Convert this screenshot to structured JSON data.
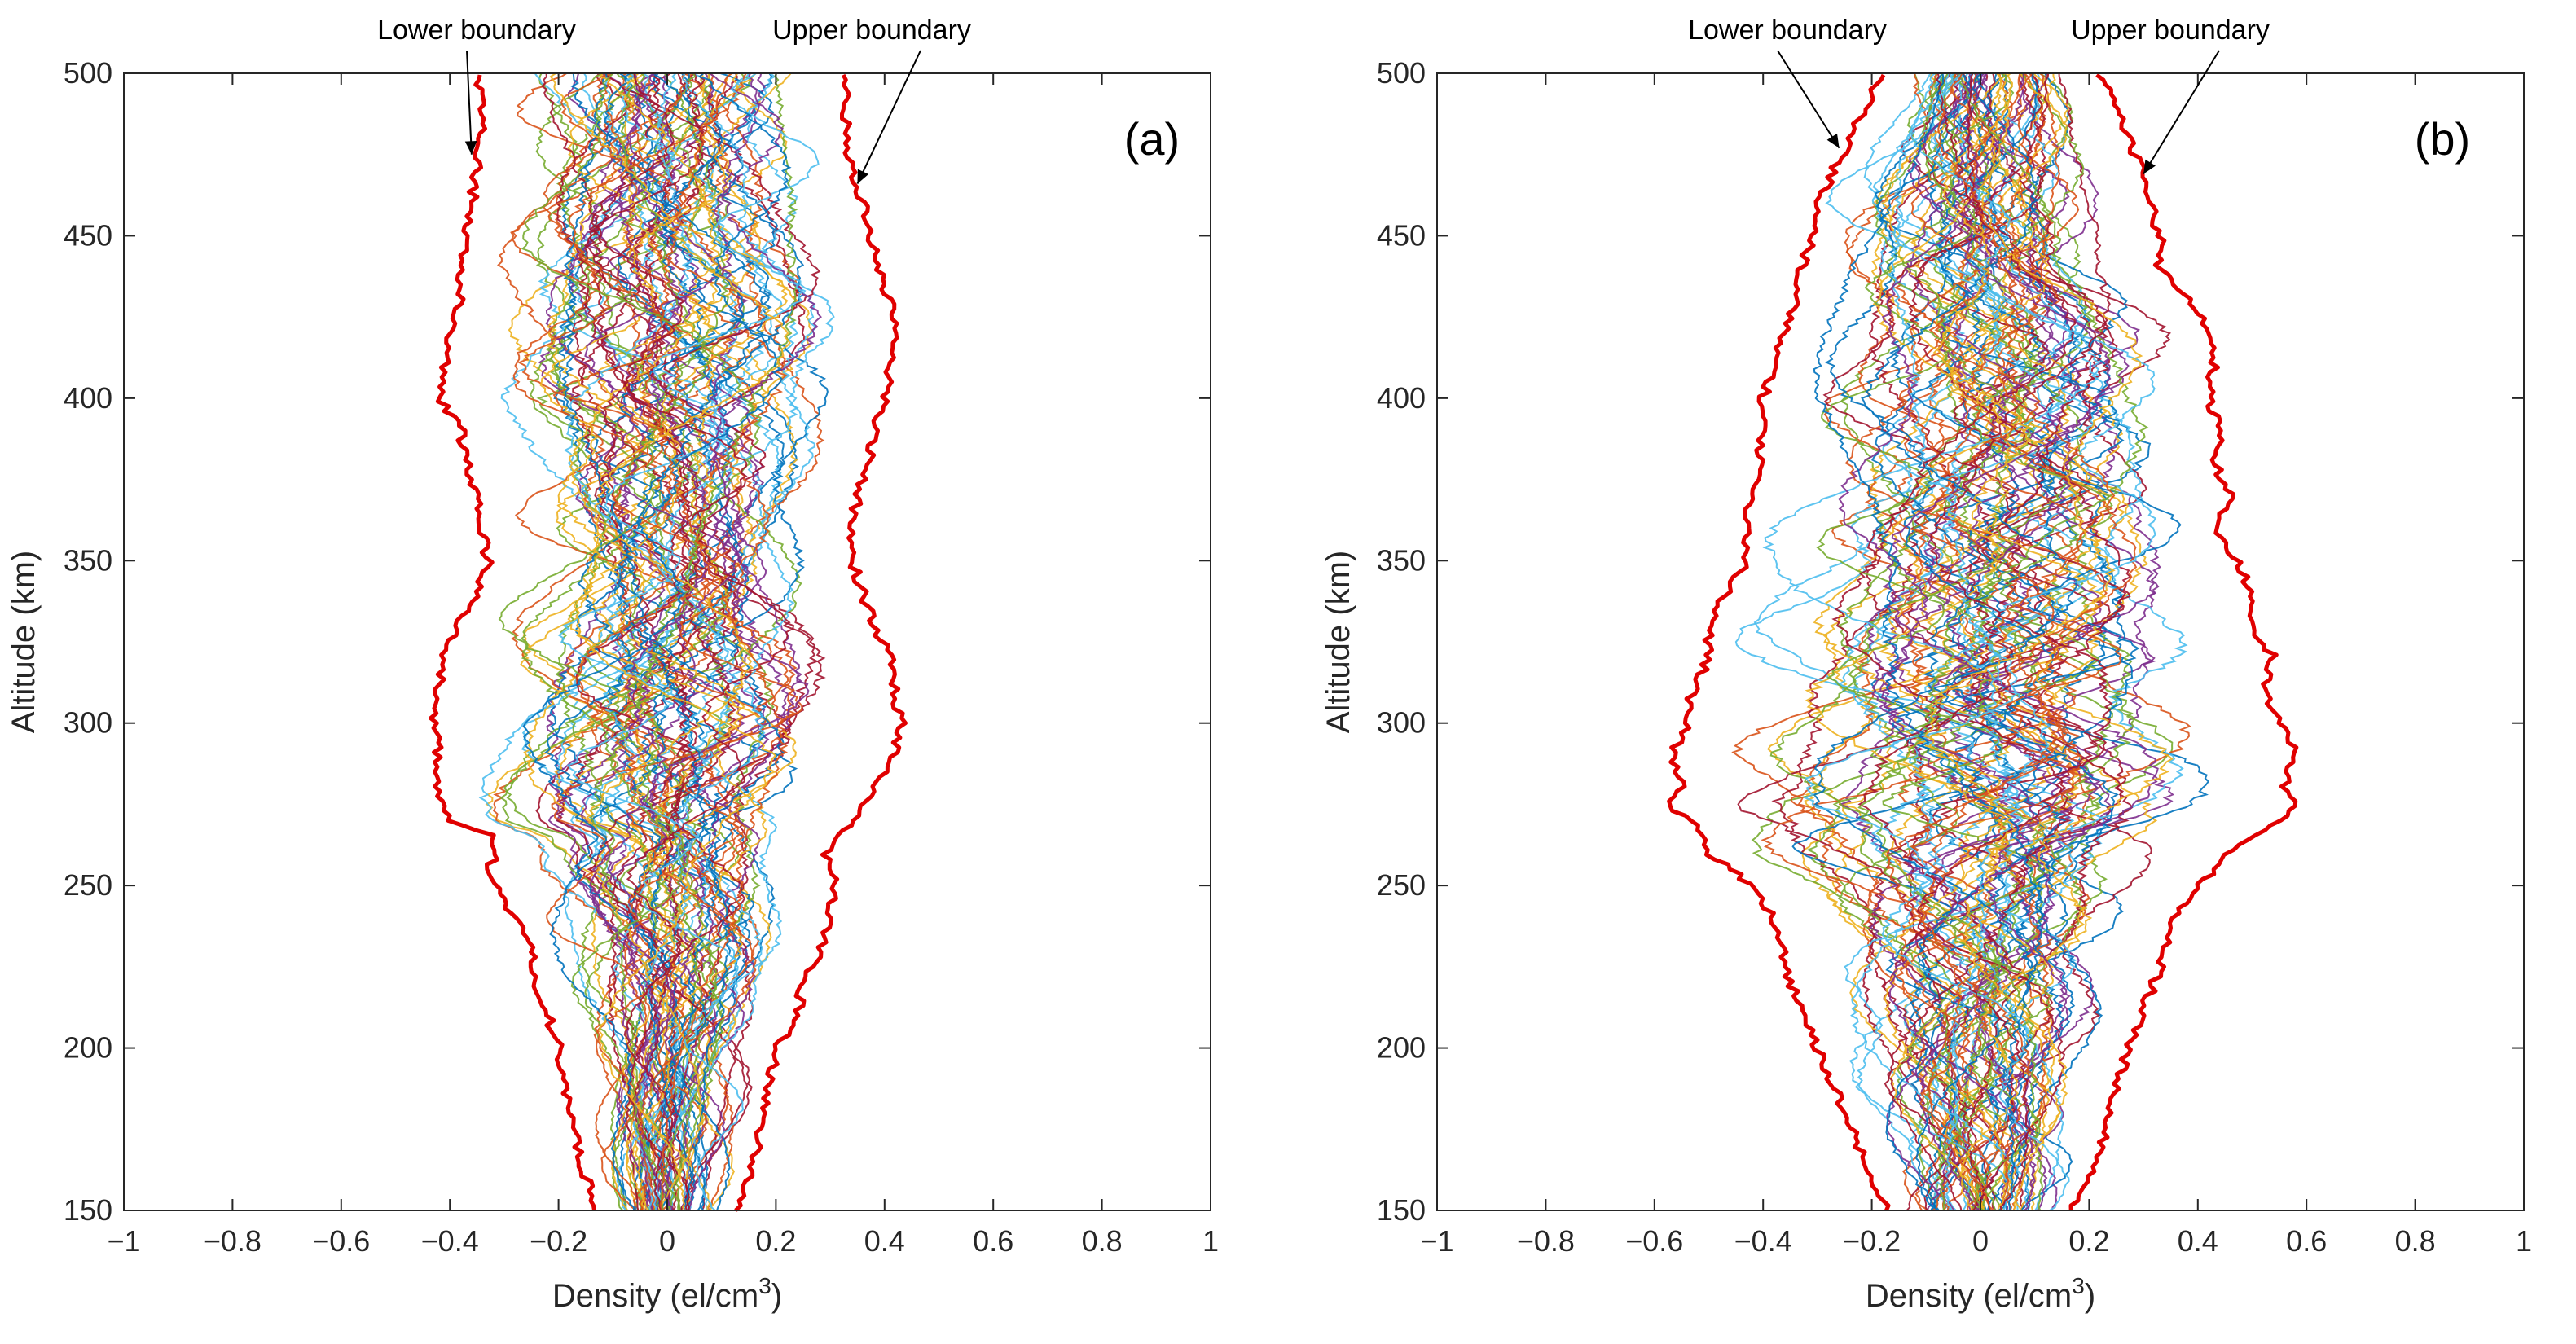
{
  "chart_data": [
    {
      "type": "line",
      "panel_label": "(a)",
      "xlabel": "Density (el/cm",
      "xlabel_sup": "3",
      "xlabel_end": ")",
      "ylabel": "Altitude (km)",
      "xlim": [
        -1,
        1
      ],
      "ylim": [
        150,
        500
      ],
      "xticks": [
        -1,
        -0.8,
        -0.6,
        -0.4,
        -0.2,
        0,
        0.2,
        0.4,
        0.6,
        0.8,
        1
      ],
      "xtick_labels": [
        "−1",
        "−0.8",
        "−0.6",
        "−0.4",
        "−0.2",
        "0",
        "0.2",
        "0.4",
        "0.6",
        "0.8",
        "1"
      ],
      "yticks": [
        150,
        200,
        250,
        300,
        350,
        400,
        450,
        500
      ],
      "ytick_labels": [
        "150",
        "200",
        "250",
        "300",
        "350",
        "400",
        "450",
        "500"
      ],
      "grid": false,
      "profile_count": 80,
      "boundary_color": "#e00000",
      "boundaries": {
        "upper": {
          "altitude": [
            150,
            160,
            180,
            200,
            210,
            220,
            230,
            240,
            250,
            255,
            260,
            265,
            270,
            280,
            290,
            300,
            310,
            320,
            330,
            340,
            350,
            360,
            370,
            380,
            390,
            400,
            410,
            420,
            430,
            440,
            450,
            460,
            470,
            480,
            490,
            500
          ],
          "density": [
            0.13,
            0.15,
            0.18,
            0.2,
            0.24,
            0.25,
            0.28,
            0.3,
            0.31,
            0.3,
            0.29,
            0.31,
            0.34,
            0.38,
            0.42,
            0.43,
            0.42,
            0.41,
            0.38,
            0.36,
            0.34,
            0.34,
            0.35,
            0.37,
            0.38,
            0.4,
            0.41,
            0.42,
            0.41,
            0.39,
            0.37,
            0.36,
            0.34,
            0.33,
            0.33,
            0.33
          ]
        },
        "lower": {
          "altitude": [
            150,
            160,
            180,
            200,
            210,
            220,
            230,
            240,
            250,
            255,
            260,
            265,
            270,
            280,
            290,
            300,
            310,
            320,
            330,
            340,
            350,
            360,
            370,
            380,
            390,
            400,
            410,
            420,
            430,
            440,
            450,
            460,
            470,
            480,
            490,
            500
          ],
          "density": [
            -0.13,
            -0.15,
            -0.18,
            -0.2,
            -0.22,
            -0.24,
            -0.25,
            -0.28,
            -0.32,
            -0.33,
            -0.31,
            -0.32,
            -0.4,
            -0.42,
            -0.42,
            -0.43,
            -0.42,
            -0.41,
            -0.39,
            -0.35,
            -0.33,
            -0.34,
            -0.35,
            -0.37,
            -0.38,
            -0.42,
            -0.41,
            -0.4,
            -0.38,
            -0.38,
            -0.37,
            -0.36,
            -0.35,
            -0.34,
            -0.34,
            -0.35
          ]
        }
      },
      "annotations": [
        {
          "text": "Lower boundary",
          "x": -0.36,
          "y": 475
        },
        {
          "text": "Upper boundary",
          "x": 0.35,
          "y": 466
        }
      ]
    },
    {
      "type": "line",
      "panel_label": "(b)",
      "xlabel": "Density (el/cm",
      "xlabel_sup": "3",
      "xlabel_end": ")",
      "ylabel": "Altitude (km)",
      "xlim": [
        -1,
        1
      ],
      "ylim": [
        150,
        500
      ],
      "xticks": [
        -1,
        -0.8,
        -0.6,
        -0.4,
        -0.2,
        0,
        0.2,
        0.4,
        0.6,
        0.8,
        1
      ],
      "xtick_labels": [
        "−1",
        "−0.8",
        "−0.6",
        "−0.4",
        "−0.2",
        "0",
        "0.2",
        "0.4",
        "0.6",
        "0.8",
        "1"
      ],
      "yticks": [
        150,
        200,
        250,
        300,
        350,
        400,
        450,
        500
      ],
      "ytick_labels": [
        "150",
        "200",
        "250",
        "300",
        "350",
        "400",
        "450",
        "500"
      ],
      "grid": false,
      "profile_count": 80,
      "boundary_color": "#e00000",
      "boundaries": {
        "upper": {
          "altitude": [
            150,
            160,
            180,
            200,
            220,
            240,
            250,
            260,
            270,
            275,
            280,
            290,
            300,
            310,
            320,
            330,
            340,
            350,
            360,
            370,
            380,
            390,
            400,
            410,
            420,
            430,
            440,
            450,
            460,
            470,
            480,
            490,
            500
          ],
          "density": [
            0.17,
            0.2,
            0.24,
            0.27,
            0.32,
            0.36,
            0.4,
            0.46,
            0.55,
            0.58,
            0.56,
            0.58,
            0.55,
            0.52,
            0.54,
            0.5,
            0.5,
            0.47,
            0.43,
            0.46,
            0.43,
            0.44,
            0.42,
            0.43,
            0.42,
            0.39,
            0.33,
            0.33,
            0.31,
            0.3,
            0.27,
            0.25,
            0.22
          ]
        },
        "lower": {
          "altitude": [
            150,
            160,
            180,
            200,
            220,
            240,
            250,
            260,
            270,
            275,
            280,
            290,
            300,
            310,
            320,
            330,
            340,
            350,
            360,
            370,
            380,
            390,
            400,
            410,
            420,
            430,
            440,
            450,
            460,
            470,
            480,
            490,
            500
          ],
          "density": [
            -0.17,
            -0.2,
            -0.25,
            -0.3,
            -0.35,
            -0.38,
            -0.42,
            -0.5,
            -0.53,
            -0.58,
            -0.55,
            -0.57,
            -0.54,
            -0.53,
            -0.5,
            -0.5,
            -0.47,
            -0.43,
            -0.43,
            -0.42,
            -0.41,
            -0.4,
            -0.4,
            -0.38,
            -0.36,
            -0.34,
            -0.33,
            -0.31,
            -0.3,
            -0.27,
            -0.24,
            -0.21,
            -0.18
          ]
        }
      },
      "annotations": [
        {
          "text": "Lower boundary",
          "x": -0.26,
          "y": 477
        },
        {
          "text": "Upper boundary",
          "x": 0.3,
          "y": 469
        }
      ]
    }
  ]
}
